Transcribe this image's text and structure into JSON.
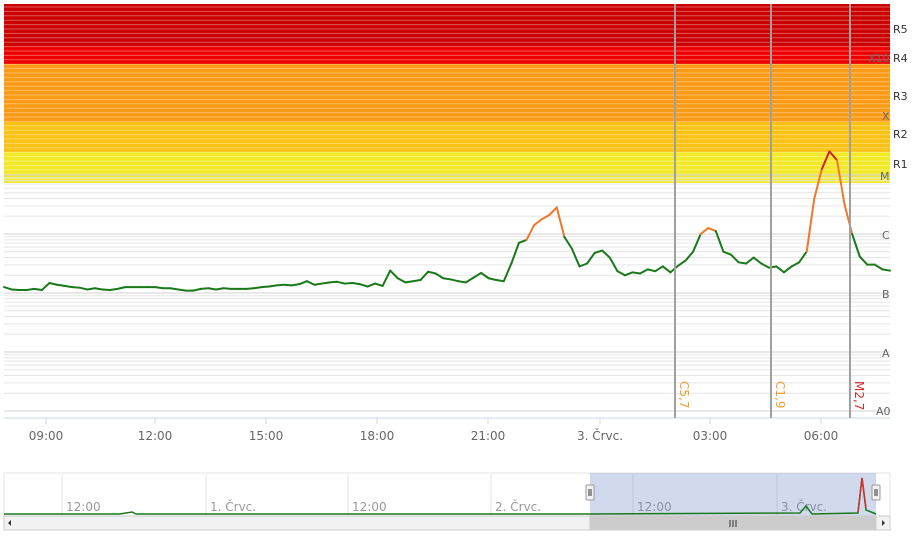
{
  "chart_data": {
    "type": "line",
    "x_time_ticks": [
      "09:00",
      "12:00",
      "15:00",
      "18:00",
      "21:00",
      "3. Črvc.",
      "03:00",
      "06:00"
    ],
    "y_class_labels": [
      "A0",
      "A",
      "B",
      "C",
      "M",
      "X",
      "X10"
    ],
    "radio_blackout_labels": [
      "R1",
      "R2",
      "R3",
      "R4",
      "R5"
    ],
    "flares": [
      {
        "label": "C5,7",
        "color": "#f0a030"
      },
      {
        "label": "C1,9",
        "color": "#f0a030"
      },
      {
        "label": "M2,7",
        "color": "#d03030"
      }
    ],
    "series_colors": {
      "low": "#1a7a1a",
      "c_class": "#f07828",
      "m_class": "#d21e1e"
    },
    "band_colors": {
      "R1": "#f2ea28",
      "R2": "#f9c214",
      "R3": "#fb9a14",
      "R4": "#f08a0c",
      "R5": "#cc0000"
    },
    "series": [
      {
        "values_log10_flux": [
          -5.9,
          -5.94,
          -5.95,
          -5.95,
          -5.93,
          -5.95,
          -5.83,
          -5.86,
          -5.88,
          -5.9,
          -5.91,
          -5.94,
          -5.92,
          -5.94,
          -5.95,
          -5.93,
          -5.9,
          -5.9,
          -5.9,
          -5.9,
          -5.9,
          -5.92,
          -5.92,
          -5.94,
          -5.96,
          -5.96,
          -5.93,
          -5.92,
          -5.94,
          -5.92,
          -5.93,
          -5.93,
          -5.93,
          -5.92,
          -5.9,
          -5.89,
          -5.87,
          -5.86,
          -5.87,
          -5.85,
          -5.8,
          -5.86,
          -5.84,
          -5.82,
          -5.81,
          -5.84,
          -5.83,
          -5.85,
          -5.89,
          -5.84,
          -5.88,
          -5.62,
          -5.75,
          -5.82,
          -5.8,
          -5.78,
          -5.64,
          -5.67,
          -5.75,
          -5.77,
          -5.8,
          -5.82,
          -5.74,
          -5.66,
          -5.75,
          -5.78,
          -5.8,
          -5.5,
          -5.15,
          -5.1,
          -4.85,
          -4.75,
          -4.68,
          -4.55,
          -5.05,
          -5.25,
          -5.55,
          -5.5,
          -5.32,
          -5.28,
          -5.4,
          -5.63,
          -5.7,
          -5.65,
          -5.67,
          -5.6,
          -5.63,
          -5.55,
          -5.65,
          -5.54,
          -5.45,
          -5.3,
          -5.0,
          -4.9,
          -4.95,
          -5.3,
          -5.35,
          -5.48,
          -5.5,
          -5.4,
          -5.5,
          -5.57,
          -5.55,
          -5.65,
          -5.55,
          -5.48,
          -5.3,
          -4.4,
          -3.9,
          -3.6,
          -3.75,
          -4.5,
          -5.0,
          -5.38,
          -5.52,
          -5.52,
          -5.6,
          -5.62
        ]
      }
    ]
  },
  "navigator": {
    "labels": [
      "12:00",
      "1. Črvc.",
      "12:00",
      "2. Črvc.",
      "12:00",
      "3. Črvc."
    ]
  }
}
